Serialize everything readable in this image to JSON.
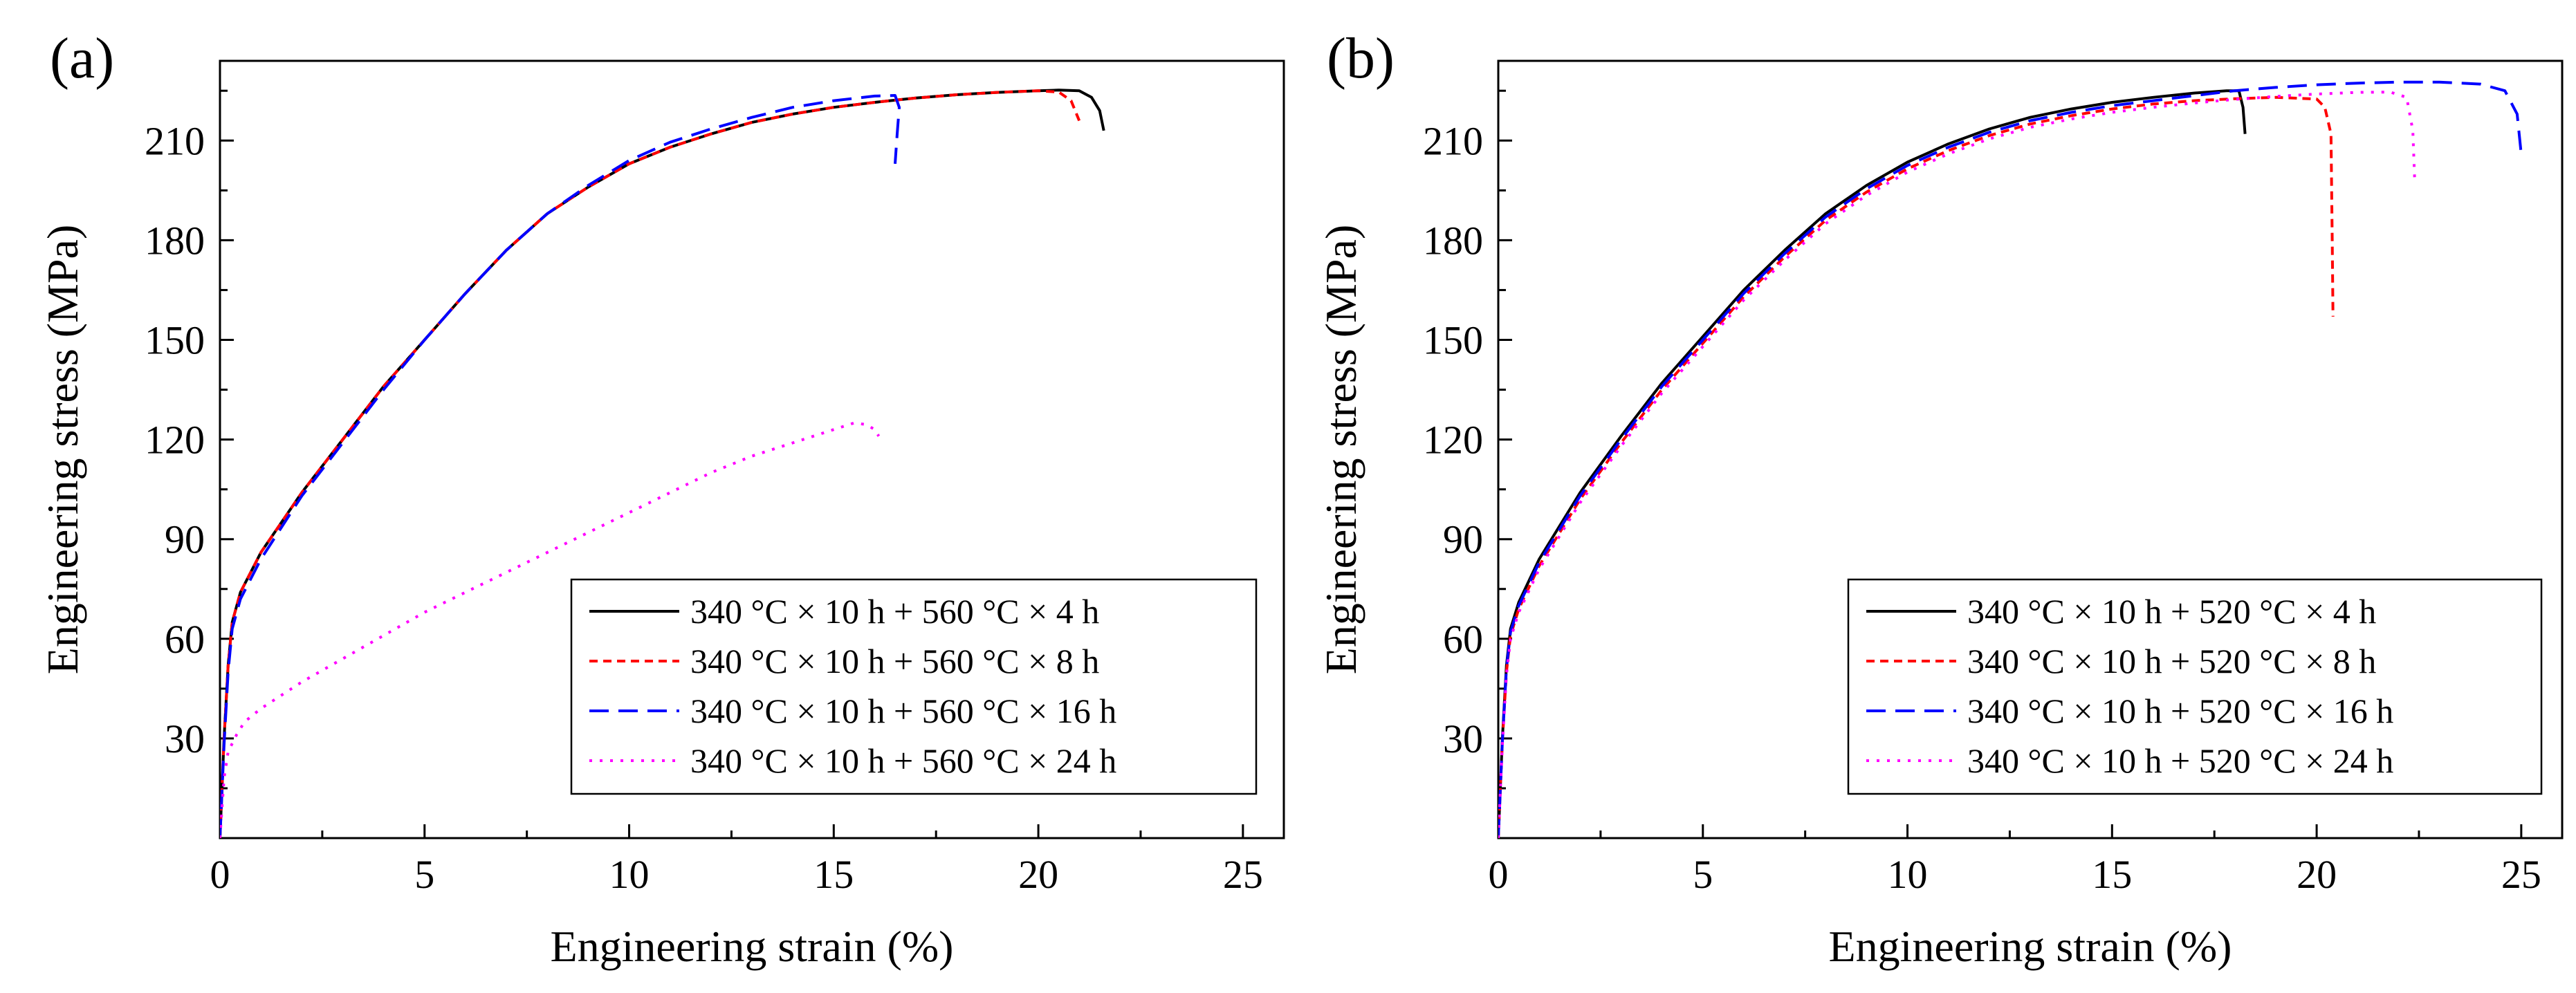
{
  "chart_data": [
    {
      "type": "line",
      "panel_label": "(a)",
      "xlabel": "Engineering strain (%)",
      "ylabel": "Engineering stress (MPa)",
      "xlim": [
        0,
        26
      ],
      "ylim": [
        0,
        234
      ],
      "x_ticks": [
        0,
        5,
        10,
        15,
        20,
        25
      ],
      "y_ticks": [
        30,
        60,
        90,
        120,
        150,
        180,
        210
      ],
      "x_tick_labels": [
        "0",
        "5",
        "10",
        "15",
        "20",
        "25"
      ],
      "y_tick_labels": [
        "30",
        "60",
        "90",
        "120",
        "150",
        "180",
        "210"
      ],
      "legend_position": "bottom-right",
      "series": [
        {
          "name": "340 °C × 10 h + 560 °C × 4 h",
          "color": "#000000",
          "dash": "solid",
          "x": [
            0,
            0.1,
            0.2,
            0.3,
            0.5,
            1,
            2,
            3,
            4,
            5,
            6,
            7,
            8,
            9,
            10,
            11,
            12,
            13,
            14,
            15,
            16,
            17,
            18,
            19,
            20,
            20.5,
            21,
            21.3,
            21.5,
            21.6
          ],
          "y": [
            0,
            30,
            52,
            65,
            74,
            86,
            104,
            120,
            136,
            150,
            164,
            177,
            188,
            196,
            203,
            208,
            212,
            215.5,
            218,
            220,
            221.5,
            222.8,
            223.8,
            224.5,
            225,
            225.2,
            225,
            223,
            219,
            213
          ]
        },
        {
          "name": "340 °C × 10 h + 560 °C × 8 h",
          "color": "#ff0000",
          "dash": "short",
          "x": [
            0,
            0.1,
            0.2,
            0.3,
            0.5,
            1,
            2,
            3,
            4,
            5,
            6,
            7,
            8,
            9,
            10,
            11,
            12,
            13,
            14,
            15,
            16,
            17,
            18,
            19,
            20,
            20.5,
            20.8,
            21
          ],
          "y": [
            0,
            30,
            52,
            65,
            74,
            86,
            104,
            120,
            136,
            150,
            164,
            177,
            188,
            196,
            203,
            208,
            212,
            215.5,
            218,
            220,
            221.5,
            222.8,
            223.8,
            224.5,
            225,
            224.6,
            222,
            216
          ]
        },
        {
          "name": "340 °C × 10 h + 560 °C × 16 h",
          "color": "#0000ff",
          "dash": "long",
          "x": [
            0,
            0.1,
            0.2,
            0.3,
            0.5,
            1,
            2,
            3,
            4,
            5,
            6,
            7,
            8,
            9,
            10,
            11,
            12,
            13,
            14,
            15,
            16,
            16.5,
            16.6,
            16.55,
            16.5
          ],
          "y": [
            0,
            28,
            50,
            63,
            72,
            84,
            103,
            119,
            135,
            150,
            164,
            177,
            188,
            196.5,
            204,
            209.5,
            213.5,
            217,
            220,
            222,
            223.4,
            223.6,
            220,
            212,
            203
          ]
        },
        {
          "name": "340 °C × 10 h + 560 °C × 24 h",
          "color": "#ff00ff",
          "dash": "dot",
          "x": [
            0,
            0.1,
            0.2,
            0.4,
            0.6,
            1,
            2,
            3,
            4,
            5,
            6,
            7,
            8,
            9,
            10,
            11,
            12,
            13,
            14,
            15,
            15.5,
            15.8,
            16,
            16.1
          ],
          "y": [
            0,
            18,
            26,
            31,
            35,
            39,
            47,
            54,
            61,
            68,
            74,
            80,
            86,
            92,
            98,
            104,
            110,
            115,
            119,
            123,
            125,
            124.5,
            123,
            121
          ]
        }
      ]
    },
    {
      "type": "line",
      "panel_label": "(b)",
      "xlabel": "Engineering strain (%)",
      "ylabel": "Engineering stress (MPa)",
      "xlim": [
        0,
        26
      ],
      "ylim": [
        0,
        234
      ],
      "x_ticks": [
        0,
        5,
        10,
        15,
        20,
        25
      ],
      "y_ticks": [
        30,
        60,
        90,
        120,
        150,
        180,
        210
      ],
      "x_tick_labels": [
        "0",
        "5",
        "10",
        "15",
        "20",
        "25"
      ],
      "y_tick_labels": [
        "30",
        "60",
        "90",
        "120",
        "150",
        "180",
        "210"
      ],
      "legend_position": "bottom-right",
      "series": [
        {
          "name": "340 °C × 10 h + 520 °C × 4 h",
          "color": "#000000",
          "dash": "solid",
          "x": [
            0,
            0.1,
            0.2,
            0.3,
            0.5,
            1,
            2,
            3,
            4,
            5,
            6,
            7,
            8,
            9,
            10,
            11,
            12,
            13,
            14,
            15,
            16,
            17,
            17.8,
            18.1,
            18.2,
            18.25
          ],
          "y": [
            0,
            30,
            52,
            63,
            71,
            84,
            104,
            121,
            137,
            151,
            165,
            177,
            188,
            196.5,
            203.5,
            209,
            213.5,
            217,
            219.5,
            221.5,
            223,
            224.3,
            225,
            225,
            220,
            212
          ]
        },
        {
          "name": "340 °C × 10 h + 520 °C × 8 h",
          "color": "#ff0000",
          "dash": "short",
          "x": [
            0,
            0.1,
            0.2,
            0.3,
            0.5,
            1,
            2,
            3,
            4,
            5,
            6,
            7,
            8,
            9,
            10,
            11,
            12,
            13,
            14,
            15,
            16,
            17,
            18,
            19,
            20,
            20.2,
            20.35,
            20.38,
            20.4
          ],
          "y": [
            0,
            29,
            50,
            61,
            69,
            82,
            102,
            119,
            135,
            149,
            163,
            175,
            186,
            194.5,
            201.5,
            207,
            211.5,
            215,
            217.5,
            219.5,
            221,
            222,
            222.6,
            223,
            222.5,
            220,
            212,
            180,
            157
          ]
        },
        {
          "name": "340 °C × 10 h + 520 °C × 16 h",
          "color": "#0000ff",
          "dash": "long",
          "x": [
            0,
            0.1,
            0.2,
            0.3,
            0.5,
            1,
            2,
            3,
            4,
            5,
            6,
            7,
            8,
            9,
            10,
            11,
            12,
            13,
            14,
            15,
            16,
            17,
            18,
            19,
            20,
            21,
            22,
            23,
            24,
            24.6,
            24.9,
            25
          ],
          "y": [
            0,
            29,
            51,
            62,
            70,
            83,
            103,
            120,
            136,
            150,
            164,
            176,
            187,
            195.5,
            202.5,
            208,
            212.5,
            216,
            218.5,
            220.5,
            222,
            223.5,
            225,
            226,
            226.8,
            227.3,
            227.6,
            227.6,
            227,
            225,
            218,
            206
          ]
        },
        {
          "name": "340 °C × 10 h + 520 °C × 24 h",
          "color": "#ff00ff",
          "dash": "dot",
          "x": [
            0,
            0.1,
            0.2,
            0.3,
            0.5,
            1,
            2,
            3,
            4,
            5,
            6,
            7,
            8,
            9,
            10,
            11,
            12,
            13,
            14,
            15,
            16,
            17,
            18,
            19,
            20,
            21,
            21.8,
            22.2,
            22.35,
            22.4
          ],
          "y": [
            0,
            28,
            49,
            60,
            68,
            81,
            101,
            118,
            134,
            148,
            162,
            174,
            185,
            193.5,
            200.5,
            206,
            210.5,
            214,
            216.5,
            218.5,
            220,
            221.3,
            222.4,
            223.3,
            224,
            224.5,
            224.6,
            223,
            213,
            197
          ]
        }
      ]
    }
  ]
}
